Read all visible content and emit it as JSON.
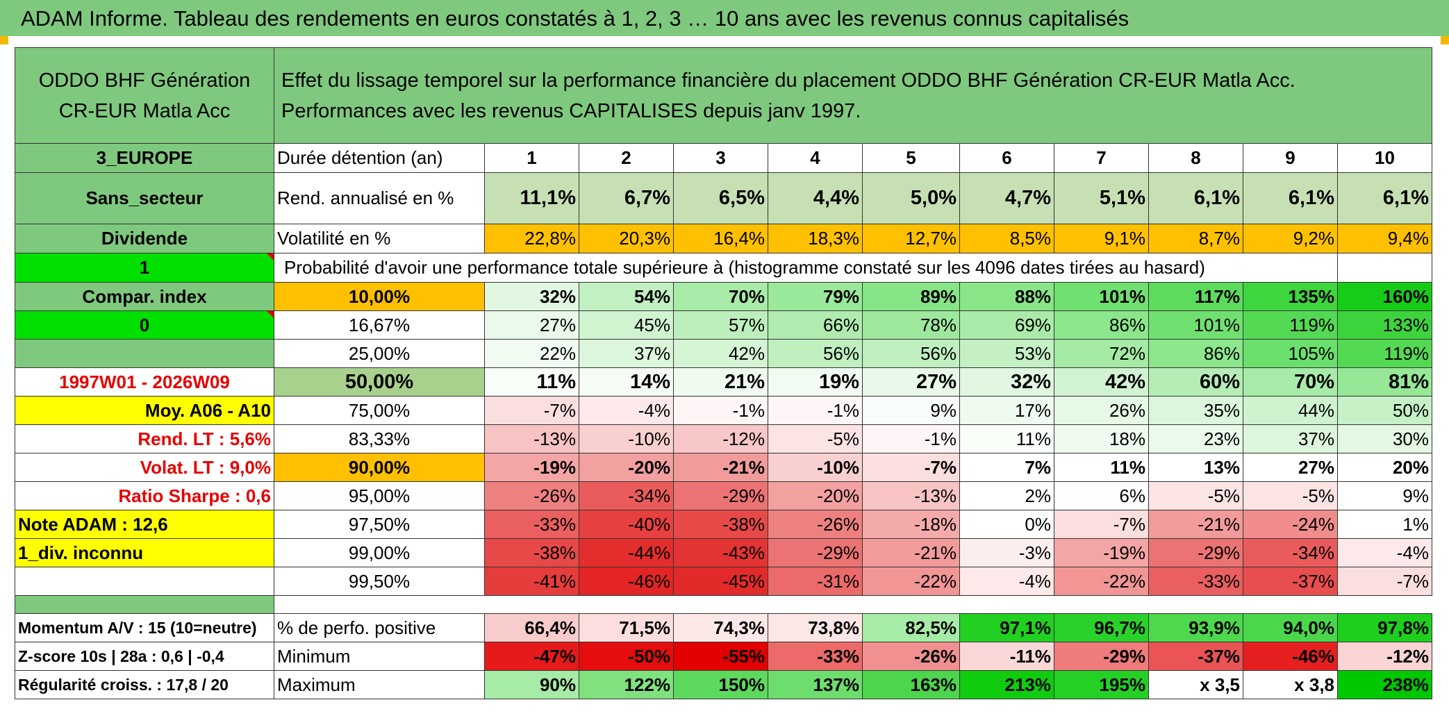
{
  "title": "ADAM Informe. Tableau des rendements en euros constatés à 1, 2, 3 … 10 ans avec les revenus connus capitalisés",
  "fund_name": "ODDO BHF Génération CR-EUR Matla Acc",
  "header_text": "Effet du lissage temporel sur la performance financière du placement ODDO BHF Génération CR-EUR Matla Acc. Performances avec les revenus CAPITALISES depuis janv 1997.",
  "side": {
    "region": "3_EUROPE",
    "sector": "Sans_secteur",
    "dividend": "Dividende",
    "one": "1",
    "compar": "Compar. index",
    "zero": "0",
    "period": "1997W01 - 2026W09",
    "moy": "Moy. A06 - A10",
    "rend_lt": "Rend. LT :   5,6%",
    "volat_lt": "Volat. LT :   9,0%",
    "sharpe": "Ratio Sharpe :   0,6",
    "note": "Note ADAM : 12,6",
    "div_inconnu": "1_div. inconnu",
    "momentum": "Momentum A/V : 15 (10=neutre)",
    "zscore": "Z-score 10s | 28a : 0,6 | -0,4",
    "regularite": "Régularité croiss. : 17,8 / 20"
  },
  "duration": {
    "label": "Durée détention (an)",
    "years": [
      "1",
      "2",
      "3",
      "4",
      "5",
      "6",
      "7",
      "8",
      "9",
      "10"
    ]
  },
  "rend": {
    "label": "Rend. annualisé en %",
    "values": [
      "11,1%",
      "6,7%",
      "6,5%",
      "4,4%",
      "5,0%",
      "4,7%",
      "5,1%",
      "6,1%",
      "6,1%",
      "6,1%"
    ]
  },
  "volat": {
    "label": "Volatilité en %",
    "values": [
      "22,8%",
      "20,3%",
      "16,4%",
      "18,3%",
      "12,7%",
      "8,5%",
      "9,1%",
      "8,7%",
      "9,2%",
      "9,4%"
    ],
    "colors": [
      "#ffc000",
      "#ffc000",
      "#ffc000",
      "#ffc000",
      "#ffc000",
      "#ffc000",
      "#ffc000",
      "#ffc000",
      "#ffc000",
      "#ffc000"
    ]
  },
  "proba_title": "Probabilité d'avoir une performance totale supérieure à (histogramme constaté sur les 4096 dates tirées au hasard)",
  "prob_rows": [
    {
      "label": "10,00%",
      "bold": true,
      "values": [
        "32%",
        "54%",
        "70%",
        "79%",
        "89%",
        "88%",
        "101%",
        "117%",
        "135%",
        "160%"
      ],
      "colors": [
        "#e2f7e2",
        "#c2f0c2",
        "#a8eba8",
        "#9ae99a",
        "#86e586",
        "#88e588",
        "#70e070",
        "#5ddb5d",
        "#3ed53e",
        "#17cc17"
      ]
    },
    {
      "label": "16,67%",
      "bold": false,
      "values": [
        "27%",
        "45%",
        "57%",
        "66%",
        "78%",
        "69%",
        "86%",
        "101%",
        "119%",
        "133%"
      ],
      "colors": [
        "#eaf9ea",
        "#d0f3d0",
        "#bdefbd",
        "#b0ecb0",
        "#9de89d",
        "#aaebaa",
        "#8ce68c",
        "#70e070",
        "#54d954",
        "#3dd33d"
      ]
    },
    {
      "label": "25,00%",
      "bold": false,
      "values": [
        "22%",
        "37%",
        "42%",
        "56%",
        "56%",
        "53%",
        "72%",
        "86%",
        "105%",
        "119%"
      ],
      "colors": [
        "#f1fbf1",
        "#dcf6dc",
        "#d4f4d4",
        "#c0efc0",
        "#c0efc0",
        "#c4f0c4",
        "#a5eaa5",
        "#8ce68c",
        "#6bdf6b",
        "#54d954"
      ]
    },
    {
      "label": "50,00%",
      "bold": true,
      "values": [
        "11%",
        "14%",
        "21%",
        "19%",
        "27%",
        "32%",
        "42%",
        "60%",
        "70%",
        "81%"
      ],
      "colors": [
        "#f8fdf8",
        "#f5fcf5",
        "#f0fbf0",
        "#f2fbf2",
        "#e9f8e9",
        "#e2f7e2",
        "#d2f3d2",
        "#b6edb6",
        "#a8eba8",
        "#96e796"
      ]
    },
    {
      "label": "75,00%",
      "bold": false,
      "values": [
        "-7%",
        "-4%",
        "-1%",
        "-1%",
        "9%",
        "17%",
        "26%",
        "35%",
        "44%",
        "50%"
      ],
      "colors": [
        "#fbdede",
        "#fde9e9",
        "#fef6f6",
        "#fef6f6",
        "#f9fdf9",
        "#f0fbf0",
        "#e6f8e6",
        "#dbf6db",
        "#ceF3ce",
        "#c6f1c6"
      ]
    },
    {
      "label": "83,33%",
      "bold": false,
      "values": [
        "-13%",
        "-10%",
        "-12%",
        "-5%",
        "-1%",
        "11%",
        "18%",
        "23%",
        "37%",
        "30%"
      ],
      "colors": [
        "#f7c3c3",
        "#f9d0d0",
        "#f8c7c7",
        "#fce4e4",
        "#fef6f6",
        "#f8fdf8",
        "#effbef",
        "#eaf9ea",
        "#dcf6dc",
        "#e3f7e3"
      ]
    },
    {
      "label": "90,00%",
      "bold": true,
      "values": [
        "-19%",
        "-20%",
        "-21%",
        "-10%",
        "-7%",
        "7%",
        "11%",
        "13%",
        "27%",
        "20%"
      ],
      "colors": [
        "#f4a5a5",
        "#f3a0a0",
        "#f29b9b",
        "#f9d0d0",
        "#fbdede",
        "#ffffff",
        "#ffffff",
        "#ffffff",
        "#ffffff",
        "#ffffff"
      ]
    },
    {
      "label": "95,00%",
      "bold": false,
      "values": [
        "-26%",
        "-34%",
        "-29%",
        "-20%",
        "-13%",
        "2%",
        "6%",
        "-5%",
        "-5%",
        "9%"
      ],
      "colors": [
        "#ee8080",
        "#ea5c5c",
        "#ec7373",
        "#f3a0a0",
        "#f7c3c3",
        "#ffffff",
        "#ffffff",
        "#fce4e4",
        "#fce4e4",
        "#ffffff"
      ]
    },
    {
      "label": "97,50%",
      "bold": false,
      "values": [
        "-33%",
        "-40%",
        "-38%",
        "-26%",
        "-18%",
        "0%",
        "-7%",
        "-21%",
        "-24%",
        "1%"
      ],
      "colors": [
        "#ea5f5f",
        "#e64040",
        "#e74949",
        "#ee8080",
        "#f5aaaa",
        "#ffffff",
        "#fbdede",
        "#f29b9b",
        "#f08c8c",
        "#ffffff"
      ]
    },
    {
      "label": "99,00%",
      "bold": false,
      "values": [
        "-38%",
        "-44%",
        "-43%",
        "-29%",
        "-21%",
        "-3%",
        "-19%",
        "-29%",
        "-34%",
        "-4%"
      ],
      "colors": [
        "#e74949",
        "#e42e2e",
        "#e43333",
        "#ec7373",
        "#f29b9b",
        "#fdeeee",
        "#f4a5a5",
        "#ec7373",
        "#ea5c5c",
        "#fde9e9"
      ]
    },
    {
      "label": "99,50%",
      "bold": false,
      "values": [
        "-41%",
        "-46%",
        "-45%",
        "-31%",
        "-22%",
        "-4%",
        "-22%",
        "-33%",
        "-37%",
        "-7%"
      ],
      "colors": [
        "#e53c3c",
        "#e32525",
        "#e32a2a",
        "#eb6a6a",
        "#f19595",
        "#fde9e9",
        "#f19595",
        "#ea5f5f",
        "#e84e4e",
        "#fbdede"
      ]
    }
  ],
  "stats": [
    {
      "label": "% de perfo. positive",
      "values": [
        "66,4%",
        "71,5%",
        "74,3%",
        "73,8%",
        "82,5%",
        "97,1%",
        "96,7%",
        "93,9%",
        "94,0%",
        "97,8%"
      ],
      "colors": [
        "#f9cccc",
        "#fcdede",
        "#fde8e8",
        "#fde6e6",
        "#a6eca6",
        "#22d022",
        "#2ad12a",
        "#4dd84d",
        "#4bd74b",
        "#1ecf1e"
      ]
    },
    {
      "label": "Minimum",
      "values": [
        "-47%",
        "-50%",
        "-55%",
        "-33%",
        "-26%",
        "-11%",
        "-29%",
        "-37%",
        "-46%",
        "-12%"
      ],
      "colors": [
        "#e61a1a",
        "#e50d0d",
        "#e30000",
        "#ec6a6a",
        "#f19090",
        "#fbd8d8",
        "#ef7b7b",
        "#ea5454",
        "#e62020",
        "#fad3d3"
      ]
    },
    {
      "label": "Maximum",
      "values": [
        "90%",
        "122%",
        "150%",
        "137%",
        "163%",
        "213%",
        "195%",
        "x 3,5",
        "x 3,8",
        "238%"
      ],
      "colors": [
        "#a6eca6",
        "#7fe27f",
        "#5dda5d",
        "#6ddd6d",
        "#4dd64d",
        "#0fcc0f",
        "#25d025",
        "#ffffff",
        "#ffffff",
        "#00c800"
      ]
    }
  ]
}
